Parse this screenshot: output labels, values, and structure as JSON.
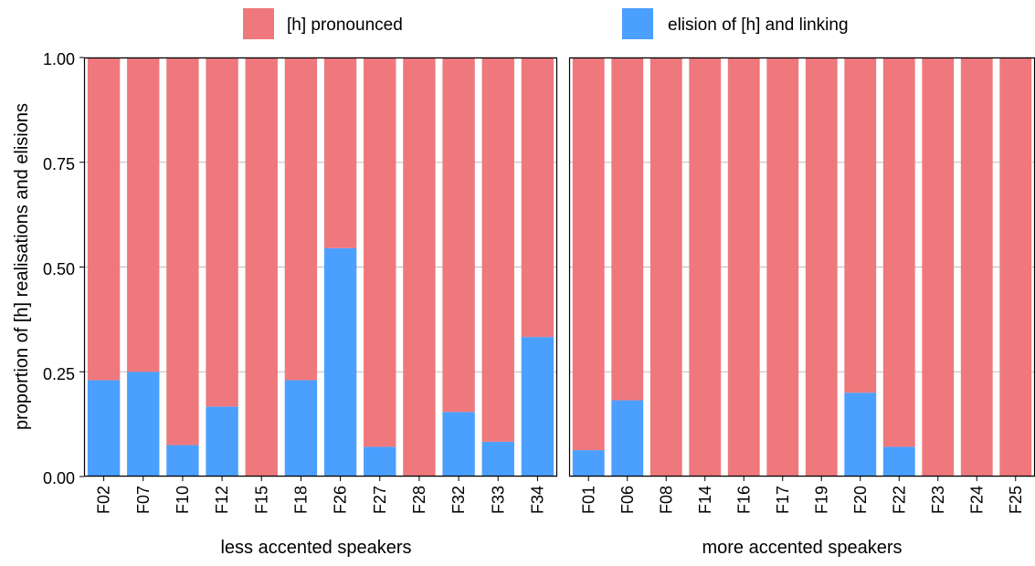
{
  "chart_data": {
    "type": "bar",
    "stacked": true,
    "ylabel": "proportion of [h] realisations and elisions",
    "ylim": [
      0,
      1
    ],
    "yticks": [
      "0.00",
      "0.25",
      "0.50",
      "0.75",
      "1.00"
    ],
    "ytick_values": [
      0,
      0.25,
      0.5,
      0.75,
      1.0
    ],
    "grid": true,
    "legend_position": "top",
    "legend": [
      {
        "name": "[h] pronounced",
        "color": "#ef787d"
      },
      {
        "name": "elision of [h] and linking",
        "color": "#4b9fff"
      }
    ],
    "panels": [
      {
        "xlabel": "less accented speakers",
        "categories": [
          "F02",
          "F07",
          "F10",
          "F12",
          "F15",
          "F18",
          "F26",
          "F27",
          "F28",
          "F32",
          "F33",
          "F34"
        ],
        "series": [
          {
            "name": "elision of [h] and linking",
            "values": [
              0.23,
              0.25,
              0.075,
              0.167,
              0.0,
              0.23,
              0.545,
              0.071,
              0.0,
              0.154,
              0.083,
              0.333
            ]
          },
          {
            "name": "[h] pronounced",
            "values": [
              0.77,
              0.75,
              0.925,
              0.833,
              1.0,
              0.77,
              0.455,
              0.929,
              1.0,
              0.846,
              0.917,
              0.667
            ]
          }
        ]
      },
      {
        "xlabel": "more accented speakers",
        "categories": [
          "F01",
          "F06",
          "F08",
          "F14",
          "F16",
          "F17",
          "F19",
          "F20",
          "F22",
          "F23",
          "F24",
          "F25"
        ],
        "series": [
          {
            "name": "elision of [h] and linking",
            "values": [
              0.063,
              0.182,
              0.0,
              0.0,
              0.0,
              0.0,
              0.0,
              0.2,
              0.071,
              0.0,
              0.0,
              0.0
            ]
          },
          {
            "name": "[h] pronounced",
            "values": [
              0.937,
              0.818,
              1.0,
              1.0,
              1.0,
              1.0,
              1.0,
              0.8,
              0.929,
              1.0,
              1.0,
              1.0
            ]
          }
        ]
      }
    ]
  }
}
